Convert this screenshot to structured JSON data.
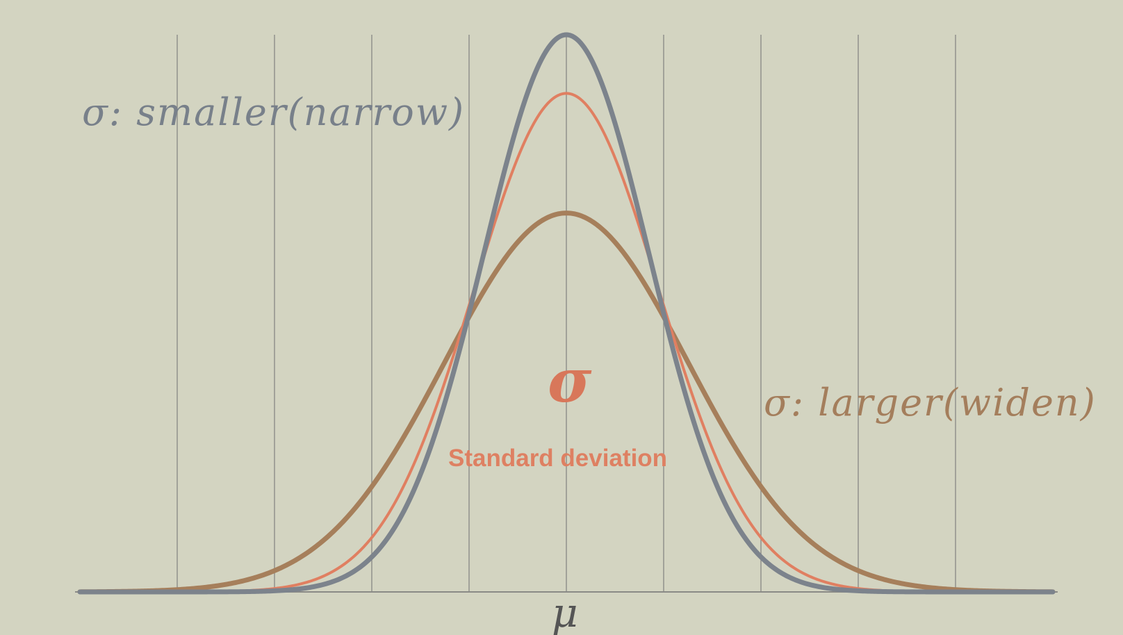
{
  "chart_data": {
    "type": "line",
    "x_range": [
      -5,
      5
    ],
    "y_range": [
      0,
      1
    ],
    "grid": "vertical",
    "x_ticks": [
      -4,
      -3,
      -2,
      -1,
      0,
      1,
      2,
      3,
      4
    ],
    "series": [
      {
        "sigma": 0.85,
        "color": "#7c838c",
        "role": "narrow"
      },
      {
        "sigma": 0.95,
        "color": "#e07f61",
        "role": "standard"
      },
      {
        "sigma": 1.25,
        "color": "#a67f5b",
        "role": "widen"
      }
    ]
  },
  "labels": {
    "narrow": "σ: smaller(narrow)",
    "widen": "σ: larger(widen)",
    "sigma": "σ",
    "standard_deviation": "Standard deviation",
    "mu": "μ"
  }
}
